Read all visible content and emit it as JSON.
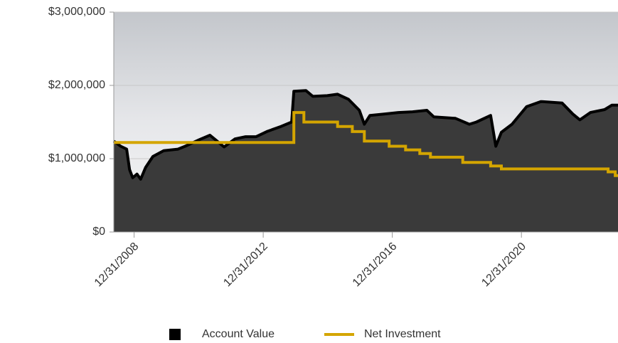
{
  "chart_data": {
    "type": "area",
    "xlim": [
      "05/15/2008",
      "12/29/2023"
    ],
    "xticks": [
      "12/31/2008",
      "12/31/2012",
      "12/31/2016",
      "12/31/2020"
    ],
    "ylim": [
      0,
      3000000
    ],
    "yticks": [
      {
        "value": 0,
        "label": "$0"
      },
      {
        "value": 1000000,
        "label": "$1,000,000"
      },
      {
        "value": 2000000,
        "label": "$2,000,000"
      },
      {
        "value": 3000000,
        "label": "$3,000,000"
      }
    ],
    "grid": true,
    "legend": "bottom",
    "series": [
      {
        "name": "Account Value",
        "color": "#000000",
        "fill": "#3a3a3a",
        "style": "area",
        "x": [
          "05/15/2008",
          "08/01/2008",
          "10/08/2008",
          "11/10/2008",
          "12/15/2008",
          "02/01/2009",
          "03/15/2009",
          "05/10/2009",
          "08/01/2009",
          "12/01/2009",
          "05/10/2010",
          "08/01/2010",
          "01/10/2011",
          "05/08/2011",
          "07/28/2011",
          "10/15/2011",
          "02/15/2012",
          "06/15/2012",
          "10/12/2012",
          "02/10/2013",
          "07/20/2013",
          "11/18/2013",
          "12/13/2013",
          "04/28/2014",
          "07/16/2014",
          "12/25/2014",
          "04/22/2015",
          "08/24/2015",
          "12/24/2015",
          "02/18/2016",
          "04/22/2016",
          "10/01/2016",
          "03/10/2017",
          "08/17/2017",
          "01/26/2018",
          "04/15/2018",
          "12/15/2018",
          "05/22/2019",
          "08/10/2019",
          "01/18/2020",
          "03/16/2020",
          "05/18/2020",
          "09/15/2020",
          "02/28/2021",
          "08/08/2021",
          "04/05/2022",
          "08/04/2022",
          "10/24/2022",
          "02/20/2023",
          "07/31/2023",
          "10/20/2023",
          "12/29/2023"
        ],
        "values": [
          1240000,
          1170000,
          1130000,
          850000,
          740000,
          790000,
          720000,
          880000,
          1030000,
          1110000,
          1130000,
          1170000,
          1260000,
          1320000,
          1240000,
          1160000,
          1270000,
          1300000,
          1300000,
          1370000,
          1440000,
          1500000,
          1920000,
          1930000,
          1850000,
          1860000,
          1880000,
          1810000,
          1660000,
          1470000,
          1590000,
          1610000,
          1630000,
          1640000,
          1660000,
          1570000,
          1550000,
          1470000,
          1500000,
          1590000,
          1170000,
          1360000,
          1470000,
          1710000,
          1780000,
          1760000,
          1610000,
          1530000,
          1630000,
          1670000,
          1730000,
          1730000
        ]
      },
      {
        "name": "Net Investment",
        "color": "#d4a500",
        "style": "step",
        "x": [
          "05/15/2008",
          "12/13/2013",
          "04/05/2014",
          "04/22/2015",
          "10/05/2015",
          "02/18/2016",
          "11/25/2016",
          "05/30/2017",
          "11/07/2017",
          "03/08/2018",
          "03/08/2019",
          "01/18/2020",
          "05/18/2020",
          "09/08/2023",
          "11/28/2023",
          "12/29/2023"
        ],
        "values": [
          1220000,
          1630000,
          1500000,
          1440000,
          1370000,
          1240000,
          1170000,
          1120000,
          1070000,
          1020000,
          950000,
          900000,
          860000,
          820000,
          770000,
          770000
        ]
      }
    ]
  }
}
